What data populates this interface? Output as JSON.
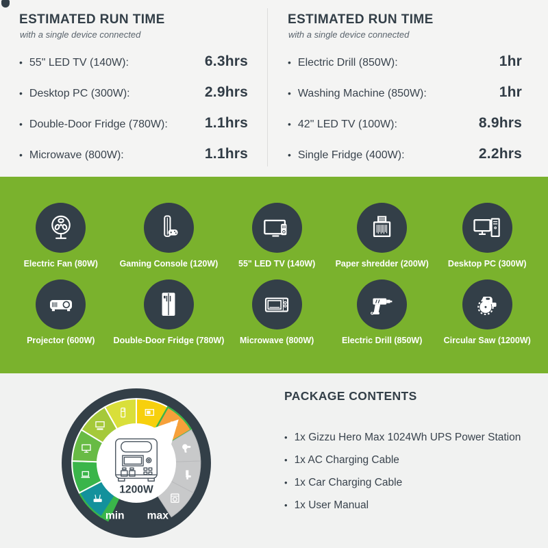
{
  "colors": {
    "background_top": "#f4f4f3",
    "background_bottom": "#f1f2f1",
    "green_band": "#7ab22d",
    "dark_navy": "#333f48",
    "divider": "#dcdcdc",
    "gauge_green": "#3ab54a",
    "gauge_teal": "#13919c",
    "gauge_orange": "#f6a03a",
    "gauge_gray": "#c8c9ca"
  },
  "run_time_panels": [
    {
      "title": "ESTIMATED RUN TIME",
      "subtitle": "with a single device connected",
      "items": [
        {
          "label": "55\" LED TV (140W):",
          "value": "6.3hrs"
        },
        {
          "label": "Desktop PC (300W):",
          "value": "2.9hrs"
        },
        {
          "label": "Double-Door Fridge (780W):",
          "value": "1.1hrs"
        },
        {
          "label": "Microwave (800W):",
          "value": "1.1hrs"
        }
      ]
    },
    {
      "title": "ESTIMATED RUN TIME",
      "subtitle": "with a single device connected",
      "items": [
        {
          "label": "Electric Drill (850W):",
          "value": "1hr"
        },
        {
          "label": "Washing Machine (850W):",
          "value": "1hr"
        },
        {
          "label": "42\" LED TV (100W):",
          "value": "8.9hrs"
        },
        {
          "label": "Single Fridge (400W):",
          "value": "2.2hrs"
        }
      ]
    }
  ],
  "device_grid": {
    "rows": [
      [
        {
          "label": "Electric Fan (80W)",
          "icon": "electric-fan"
        },
        {
          "label": "Gaming Console (120W)",
          "icon": "gaming-console"
        },
        {
          "label": "55\" LED TV (140W)",
          "icon": "led-tv"
        },
        {
          "label": "Paper shredder (200W)",
          "icon": "paper-shredder"
        },
        {
          "label": "Desktop PC (300W)",
          "icon": "desktop-pc"
        }
      ],
      [
        {
          "label": "Projector (600W)",
          "icon": "projector"
        },
        {
          "label": "Double-Door Fridge (780W)",
          "icon": "double-door-fridge"
        },
        {
          "label": "Microwave (800W)",
          "icon": "microwave"
        },
        {
          "label": "Electric Drill (850W)",
          "icon": "electric-drill"
        },
        {
          "label": "Circular Saw (1200W)",
          "icon": "circular-saw"
        }
      ]
    ]
  },
  "gauge": {
    "center_label": "1200W",
    "min_label": "min",
    "max_label": "max",
    "segments": [
      {
        "icon": "wifi-router",
        "color": "#13919c",
        "edge": "green"
      },
      {
        "icon": "laptop",
        "color": "#3ab54a"
      },
      {
        "icon": "monitor",
        "color": "#68bb45"
      },
      {
        "icon": "tv-soundbar",
        "color": "#a5c93a"
      },
      {
        "icon": "fridge",
        "color": "#d9df3a"
      },
      {
        "icon": "tv",
        "color": "#f7d00d"
      },
      {
        "icon": "circular-saw",
        "color": "#f6a03a",
        "edge": "green",
        "pointer": true
      },
      {
        "icon": "hair-dryer",
        "color": "#c8c9ca"
      },
      {
        "icon": "drill",
        "color": "#c8c9ca"
      },
      {
        "icon": "washing-machine",
        "color": "#c8c9ca"
      }
    ]
  },
  "package_contents": {
    "title": "PACKAGE CONTENTS",
    "items": [
      "1x Gizzu Hero Max 1024Wh UPS Power Station",
      "1x AC Charging Cable",
      "1x Car Charging Cable",
      "1x User Manual"
    ]
  }
}
